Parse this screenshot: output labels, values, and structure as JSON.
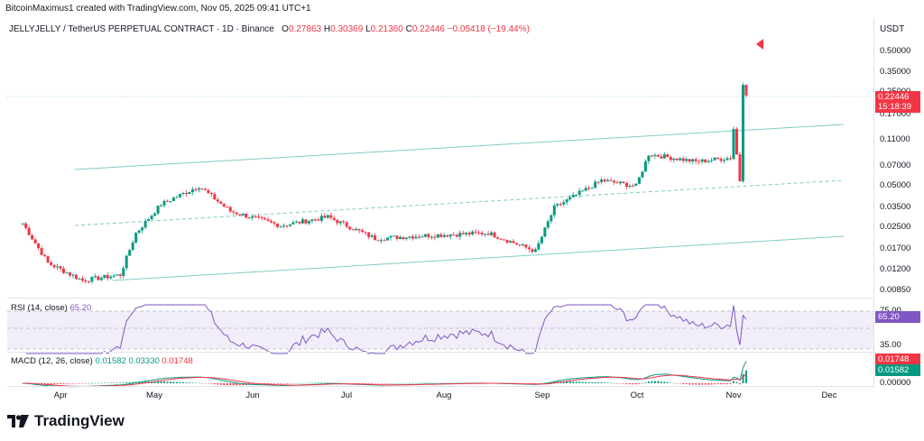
{
  "header": {
    "created_by": "BitcoinMaximus1 created with TradingView.com, Nov 05, 2025 09:41 UTC+1"
  },
  "symbol": {
    "title": "JELLYJELLY / TetherUS PERPETUAL CONTRACT · 1D · Binance",
    "o_label": "O",
    "o_value": "0.27863",
    "h_label": "H",
    "h_value": "0.30369",
    "l_label": "L",
    "l_value": "0.21360",
    "c_label": "C",
    "c_value": "0.22446",
    "change": "−0.05418 (−19.44%)"
  },
  "price_axis": {
    "currency": "USDT",
    "ticks": [
      "0.50000",
      "0.35000",
      "0.25000",
      "0.17000",
      "0.11000",
      "0.07000",
      "0.05000",
      "0.03500",
      "0.02500",
      "0.01700",
      "0.01200",
      "0.00850"
    ],
    "last_price": "0.22446",
    "countdown": "15:18:39"
  },
  "rsi": {
    "title": "RSI (14, close)",
    "value": "65.20",
    "ticks": [
      "75.00",
      "35.00"
    ]
  },
  "macd": {
    "title": "MACD (12, 26, close)",
    "v1": "0.01582",
    "v2": "0.03330",
    "v3": "0.01748",
    "tag_red": "0.01748",
    "tag_green": "0.01582",
    "tick": "0.00000"
  },
  "time_axis": {
    "months": [
      "Apr",
      "May",
      "Jun",
      "Jul",
      "Aug",
      "Sep",
      "Oct",
      "Nov",
      "Dec"
    ]
  },
  "footer": {
    "brand": "TradingView"
  },
  "colors": {
    "up": "#089981",
    "down": "#f23645",
    "rsi": "#7e57c2",
    "channel": "#80cbc4"
  },
  "chart_data": {
    "type": "candlestick",
    "symbol": "JELLYJELLY/USDT",
    "interval": "1D",
    "scale": "log",
    "ylim": [
      0.0085,
      0.6
    ],
    "close_path": [
      {
        "date": "2025-03-20",
        "close": 0.027
      },
      {
        "date": "2025-03-28",
        "close": 0.014
      },
      {
        "date": "2025-04-08",
        "close": 0.0105
      },
      {
        "date": "2025-04-20",
        "close": 0.0115
      },
      {
        "date": "2025-04-25",
        "close": 0.023
      },
      {
        "date": "2025-05-03",
        "close": 0.037
      },
      {
        "date": "2025-05-15",
        "close": 0.05
      },
      {
        "date": "2025-05-25",
        "close": 0.033
      },
      {
        "date": "2025-06-10",
        "close": 0.026
      },
      {
        "date": "2025-06-25",
        "close": 0.03
      },
      {
        "date": "2025-07-10",
        "close": 0.021
      },
      {
        "date": "2025-07-25",
        "close": 0.022
      },
      {
        "date": "2025-08-15",
        "close": 0.023
      },
      {
        "date": "2025-08-30",
        "close": 0.017
      },
      {
        "date": "2025-09-05",
        "close": 0.035
      },
      {
        "date": "2025-09-20",
        "close": 0.055
      },
      {
        "date": "2025-10-01",
        "close": 0.05
      },
      {
        "date": "2025-10-05",
        "close": 0.085
      },
      {
        "date": "2025-10-20",
        "close": 0.075
      },
      {
        "date": "2025-10-31",
        "close": 0.08
      },
      {
        "date": "2025-11-01",
        "close": 0.13
      },
      {
        "date": "2025-11-03",
        "close": 0.055
      },
      {
        "date": "2025-11-04",
        "close": 0.278
      },
      {
        "date": "2025-11-05",
        "close": 0.22446
      }
    ],
    "rsi_last": 65.2,
    "macd_last": {
      "macd": 0.0333,
      "signal": 0.01748,
      "hist": 0.01582
    }
  }
}
